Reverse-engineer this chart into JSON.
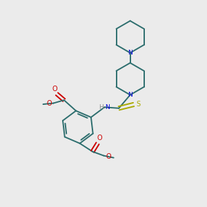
{
  "background_color": "#ebebeb",
  "bond_color": "#2d6e6e",
  "nitrogen_color": "#0000dd",
  "oxygen_color": "#cc0000",
  "sulfur_color": "#aaaa00",
  "hydrogen_color": "#888888",
  "line_width": 1.4,
  "figsize": [
    3.0,
    3.0
  ],
  "dpi": 100,
  "xlim": [
    0,
    10
  ],
  "ylim": [
    0,
    10
  ]
}
